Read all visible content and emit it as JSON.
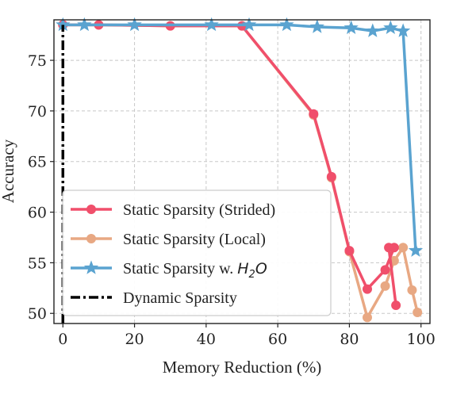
{
  "chart_data": {
    "type": "line",
    "xlabel": "Memory Reduction (%)",
    "ylabel": "Accuracy",
    "xlim": [
      -2.5,
      102.5
    ],
    "ylim": [
      49,
      79
    ],
    "xticks": [
      0,
      20,
      40,
      60,
      80,
      100
    ],
    "yticks": [
      50,
      55,
      60,
      65,
      70,
      75
    ],
    "xtick_labels": [
      "0",
      "20",
      "40",
      "60",
      "80",
      "100"
    ],
    "ytick_labels": [
      "50",
      "55",
      "60",
      "65",
      "70",
      "75"
    ],
    "grid": true,
    "legend_position": "lower-left",
    "series": [
      {
        "name": "Static Sparsity (Strided)",
        "color": "#f04f6b",
        "marker": "circle",
        "style": "solid",
        "x": [
          0,
          10,
          30,
          50,
          70,
          75,
          80,
          85,
          90,
          92.5,
          91,
          93
        ],
        "y": [
          78.5,
          78.5,
          78.4,
          78.4,
          69.7,
          63.5,
          56.2,
          52.4,
          54.3,
          56.5,
          56.5,
          50.8
        ]
      },
      {
        "name": "Static Sparsity (Local)",
        "color": "#e8a883",
        "marker": "circle",
        "style": "solid",
        "x": [
          0,
          10,
          30,
          50,
          70,
          75,
          80,
          85,
          90,
          92.5,
          95,
          97.5,
          99
        ],
        "y": [
          78.5,
          78.5,
          78.4,
          78.4,
          69.6,
          63.4,
          56.1,
          49.6,
          52.7,
          55.2,
          56.5,
          52.3,
          50.1
        ]
      },
      {
        "name": "Static Sparsity w. ",
        "name_math": "H",
        "name_math_sub": "2",
        "name_math_tail": "O",
        "color": "#5aa3d0",
        "marker": "star",
        "style": "solid",
        "x": [
          0,
          6,
          20,
          41.5,
          52,
          62.5,
          71,
          80.5,
          86.5,
          91.5,
          95,
          98.5
        ],
        "y": [
          78.5,
          78.5,
          78.5,
          78.5,
          78.5,
          78.5,
          78.3,
          78.2,
          77.9,
          78.2,
          77.9,
          56.2
        ]
      },
      {
        "name": "Dynamic Sparsity",
        "color": "#000000",
        "marker": "none",
        "style": "dashdot",
        "x": [
          0,
          0
        ],
        "y": [
          49,
          78.5
        ]
      }
    ]
  }
}
